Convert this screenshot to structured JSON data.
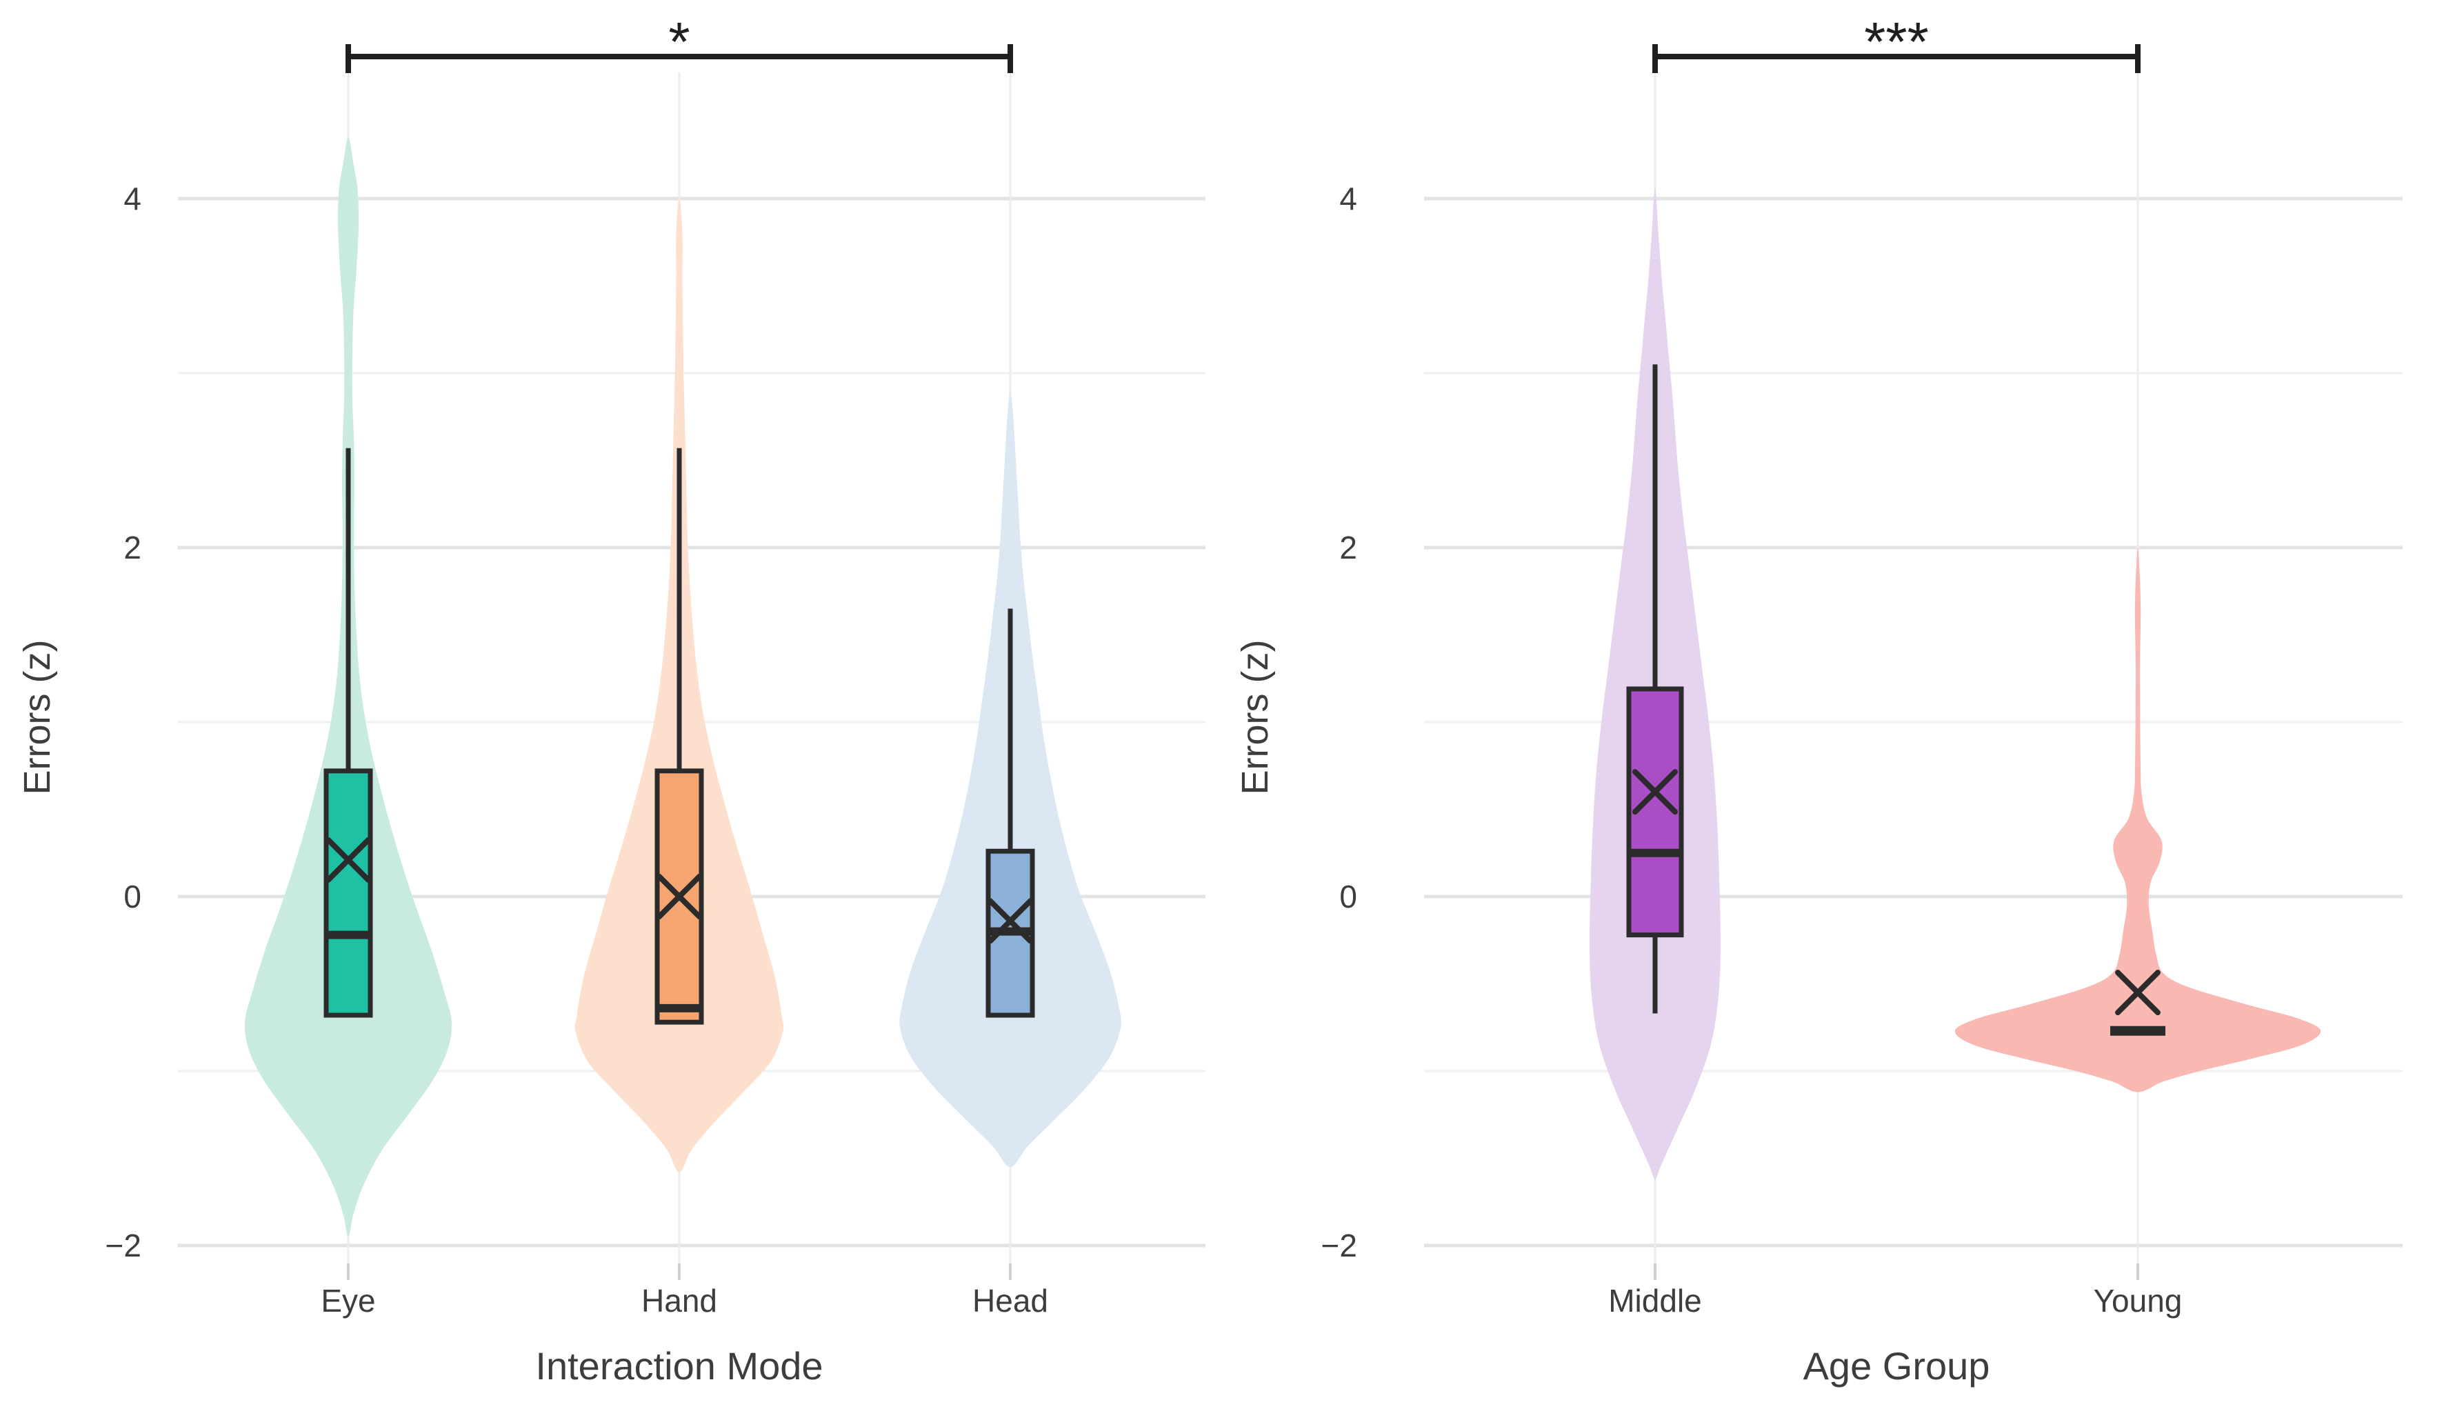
{
  "figure": {
    "description": "Two-panel violin/box plot figure of standardized errors",
    "background": "#ffffff"
  },
  "chart_data": [
    {
      "type": "violin",
      "panel": "interaction-mode",
      "title": "",
      "xlabel": "Interaction Mode",
      "ylabel": "Errors (z)",
      "ylim": [
        -2.4,
        4.85
      ],
      "grid": true,
      "yticks": [
        {
          "value": 4,
          "label": "4"
        },
        {
          "value": 2,
          "label": "2"
        },
        {
          "value": 0,
          "label": "0"
        },
        {
          "value": -2,
          "label": "−2"
        }
      ],
      "minor_gridlines": [
        3,
        1,
        -1
      ],
      "categories": [
        "Eye",
        "Hand",
        "Head"
      ],
      "significance": {
        "from": "Eye",
        "to": "Head",
        "label": "*"
      },
      "series": [
        {
          "name": "Eye",
          "colors": {
            "box": "#1fc1a5",
            "violin": "#c9ebdf"
          },
          "box": {
            "q1": -0.68,
            "q3": 0.72,
            "median": -0.22,
            "mean": 0.21,
            "whisker_high": 2.57,
            "whisker_low": null
          },
          "violin": {
            "min": -1.95,
            "max": 4.35,
            "profile": [
              [
                4.35,
                0
              ],
              [
                4.2,
                0.05
              ],
              [
                4.05,
                0.09
              ],
              [
                3.85,
                0.1
              ],
              [
                3.6,
                0.08
              ],
              [
                3.35,
                0.05
              ],
              [
                3.1,
                0.04
              ],
              [
                2.85,
                0.04
              ],
              [
                2.6,
                0.055
              ],
              [
                2.35,
                0.06
              ],
              [
                2.1,
                0.055
              ],
              [
                1.8,
                0.06
              ],
              [
                1.5,
                0.08
              ],
              [
                1.2,
                0.12
              ],
              [
                0.9,
                0.2
              ],
              [
                0.6,
                0.32
              ],
              [
                0.3,
                0.46
              ],
              [
                0.0,
                0.62
              ],
              [
                -0.3,
                0.8
              ],
              [
                -0.55,
                0.93
              ],
              [
                -0.72,
                1.0
              ],
              [
                -0.88,
                0.96
              ],
              [
                -1.05,
                0.82
              ],
              [
                -1.25,
                0.58
              ],
              [
                -1.45,
                0.33
              ],
              [
                -1.65,
                0.15
              ],
              [
                -1.82,
                0.05
              ],
              [
                -1.95,
                0
              ]
            ]
          }
        },
        {
          "name": "Hand",
          "colors": {
            "box": "#f7a671",
            "violin": "#fce0cd"
          },
          "box": {
            "q1": -0.72,
            "q3": 0.72,
            "median": -0.64,
            "mean": 0.0,
            "whisker_high": 2.57,
            "whisker_low": null
          },
          "violin": {
            "min": -1.58,
            "max": 4.0,
            "profile": [
              [
                4.0,
                0
              ],
              [
                3.8,
                0.03
              ],
              [
                3.55,
                0.03
              ],
              [
                3.3,
                0.035
              ],
              [
                3.05,
                0.04
              ],
              [
                2.8,
                0.05
              ],
              [
                2.55,
                0.06
              ],
              [
                2.3,
                0.07
              ],
              [
                2.05,
                0.08
              ],
              [
                1.8,
                0.1
              ],
              [
                1.55,
                0.13
              ],
              [
                1.3,
                0.17
              ],
              [
                1.05,
                0.23
              ],
              [
                0.8,
                0.32
              ],
              [
                0.55,
                0.43
              ],
              [
                0.3,
                0.55
              ],
              [
                0.05,
                0.68
              ],
              [
                -0.2,
                0.8
              ],
              [
                -0.45,
                0.92
              ],
              [
                -0.68,
                0.99
              ],
              [
                -0.78,
                1.0
              ],
              [
                -0.95,
                0.88
              ],
              [
                -1.12,
                0.62
              ],
              [
                -1.3,
                0.33
              ],
              [
                -1.45,
                0.12
              ],
              [
                -1.58,
                0
              ]
            ]
          }
        },
        {
          "name": "Head",
          "colors": {
            "box": "#8cb1d8",
            "violin": "#dbe7f2"
          },
          "box": {
            "q1": -0.68,
            "q3": 0.26,
            "median": -0.2,
            "mean": -0.14,
            "whisker_high": 1.65,
            "whisker_low": null
          },
          "violin": {
            "min": -1.55,
            "max": 2.9,
            "profile": [
              [
                2.9,
                0
              ],
              [
                2.72,
                0.03
              ],
              [
                2.5,
                0.05
              ],
              [
                2.28,
                0.07
              ],
              [
                2.05,
                0.09
              ],
              [
                1.82,
                0.12
              ],
              [
                1.6,
                0.16
              ],
              [
                1.38,
                0.2
              ],
              [
                1.15,
                0.25
              ],
              [
                0.92,
                0.3
              ],
              [
                0.7,
                0.36
              ],
              [
                0.48,
                0.43
              ],
              [
                0.25,
                0.52
              ],
              [
                0.02,
                0.63
              ],
              [
                -0.2,
                0.77
              ],
              [
                -0.42,
                0.9
              ],
              [
                -0.62,
                0.98
              ],
              [
                -0.75,
                1.0
              ],
              [
                -0.92,
                0.9
              ],
              [
                -1.1,
                0.68
              ],
              [
                -1.28,
                0.4
              ],
              [
                -1.43,
                0.16
              ],
              [
                -1.55,
                0
              ]
            ]
          }
        }
      ]
    },
    {
      "type": "violin",
      "panel": "age-group",
      "title": "",
      "xlabel": "Age Group",
      "ylabel": "Errors (z)",
      "ylim": [
        -2.4,
        4.85
      ],
      "grid": true,
      "yticks": [
        {
          "value": 4,
          "label": "4"
        },
        {
          "value": 2,
          "label": "2"
        },
        {
          "value": 0,
          "label": "0"
        },
        {
          "value": -2,
          "label": "−2"
        }
      ],
      "minor_gridlines": [
        3,
        1,
        -1
      ],
      "categories": [
        "Middle",
        "Young"
      ],
      "significance": {
        "from": "Middle",
        "to": "Young",
        "label": "***"
      },
      "series": [
        {
          "name": "Middle",
          "colors": {
            "box": "#aa4ec5",
            "violin": "#e6d3ee"
          },
          "box": {
            "q1": -0.22,
            "q3": 1.19,
            "median": 0.25,
            "mean": 0.6,
            "whisker_high": 3.05,
            "whisker_low": -0.67
          },
          "violin": {
            "min": -1.62,
            "max": 4.06,
            "profile": [
              [
                4.06,
                0
              ],
              [
                3.8,
                0.05
              ],
              [
                3.55,
                0.1
              ],
              [
                3.3,
                0.16
              ],
              [
                3.05,
                0.22
              ],
              [
                2.8,
                0.28
              ],
              [
                2.5,
                0.34
              ],
              [
                2.2,
                0.42
              ],
              [
                1.9,
                0.52
              ],
              [
                1.6,
                0.62
              ],
              [
                1.3,
                0.72
              ],
              [
                1.0,
                0.82
              ],
              [
                0.7,
                0.9
              ],
              [
                0.4,
                0.95
              ],
              [
                0.1,
                0.98
              ],
              [
                -0.3,
                1.0
              ],
              [
                -0.6,
                0.96
              ],
              [
                -0.85,
                0.85
              ],
              [
                -1.1,
                0.62
              ],
              [
                -1.3,
                0.38
              ],
              [
                -1.45,
                0.2
              ],
              [
                -1.55,
                0.08
              ],
              [
                -1.62,
                0
              ]
            ]
          }
        },
        {
          "name": "Young",
          "colors": {
            "box": "#f9b8b2",
            "violin": "#f9b8b2"
          },
          "box": {
            "q1": null,
            "q3": null,
            "median": -0.77,
            "mean": -0.55,
            "whisker_high": null,
            "whisker_low": null
          },
          "violin": {
            "min": -1.12,
            "max": 2.0,
            "profile": [
              [
                2.0,
                0
              ],
              [
                1.85,
                0.01
              ],
              [
                1.7,
                0.015
              ],
              [
                1.55,
                0.015
              ],
              [
                1.35,
                0.012
              ],
              [
                1.15,
                0.012
              ],
              [
                0.95,
                0.013
              ],
              [
                0.75,
                0.015
              ],
              [
                0.6,
                0.02
              ],
              [
                0.45,
                0.05
              ],
              [
                0.32,
                0.13
              ],
              [
                0.2,
                0.12
              ],
              [
                0.08,
                0.07
              ],
              [
                -0.05,
                0.06
              ],
              [
                -0.2,
                0.08
              ],
              [
                -0.33,
                0.1
              ],
              [
                -0.44,
                0.14
              ],
              [
                -0.52,
                0.28
              ],
              [
                -0.62,
                0.6
              ],
              [
                -0.7,
                0.88
              ],
              [
                -0.77,
                1.0
              ],
              [
                -0.85,
                0.9
              ],
              [
                -0.93,
                0.62
              ],
              [
                -1.0,
                0.34
              ],
              [
                -1.06,
                0.14
              ],
              [
                -1.12,
                0
              ]
            ]
          }
        }
      ]
    }
  ],
  "style": {
    "ink": "#2b2b2b",
    "text_color": "#3d3d3d",
    "grid_major": "#e3e3e3",
    "grid_minor": "#f0f0f0",
    "category_line": "#ededed",
    "category_tick": "#cfcfcf",
    "bracket_color": "#1f1f1f"
  }
}
